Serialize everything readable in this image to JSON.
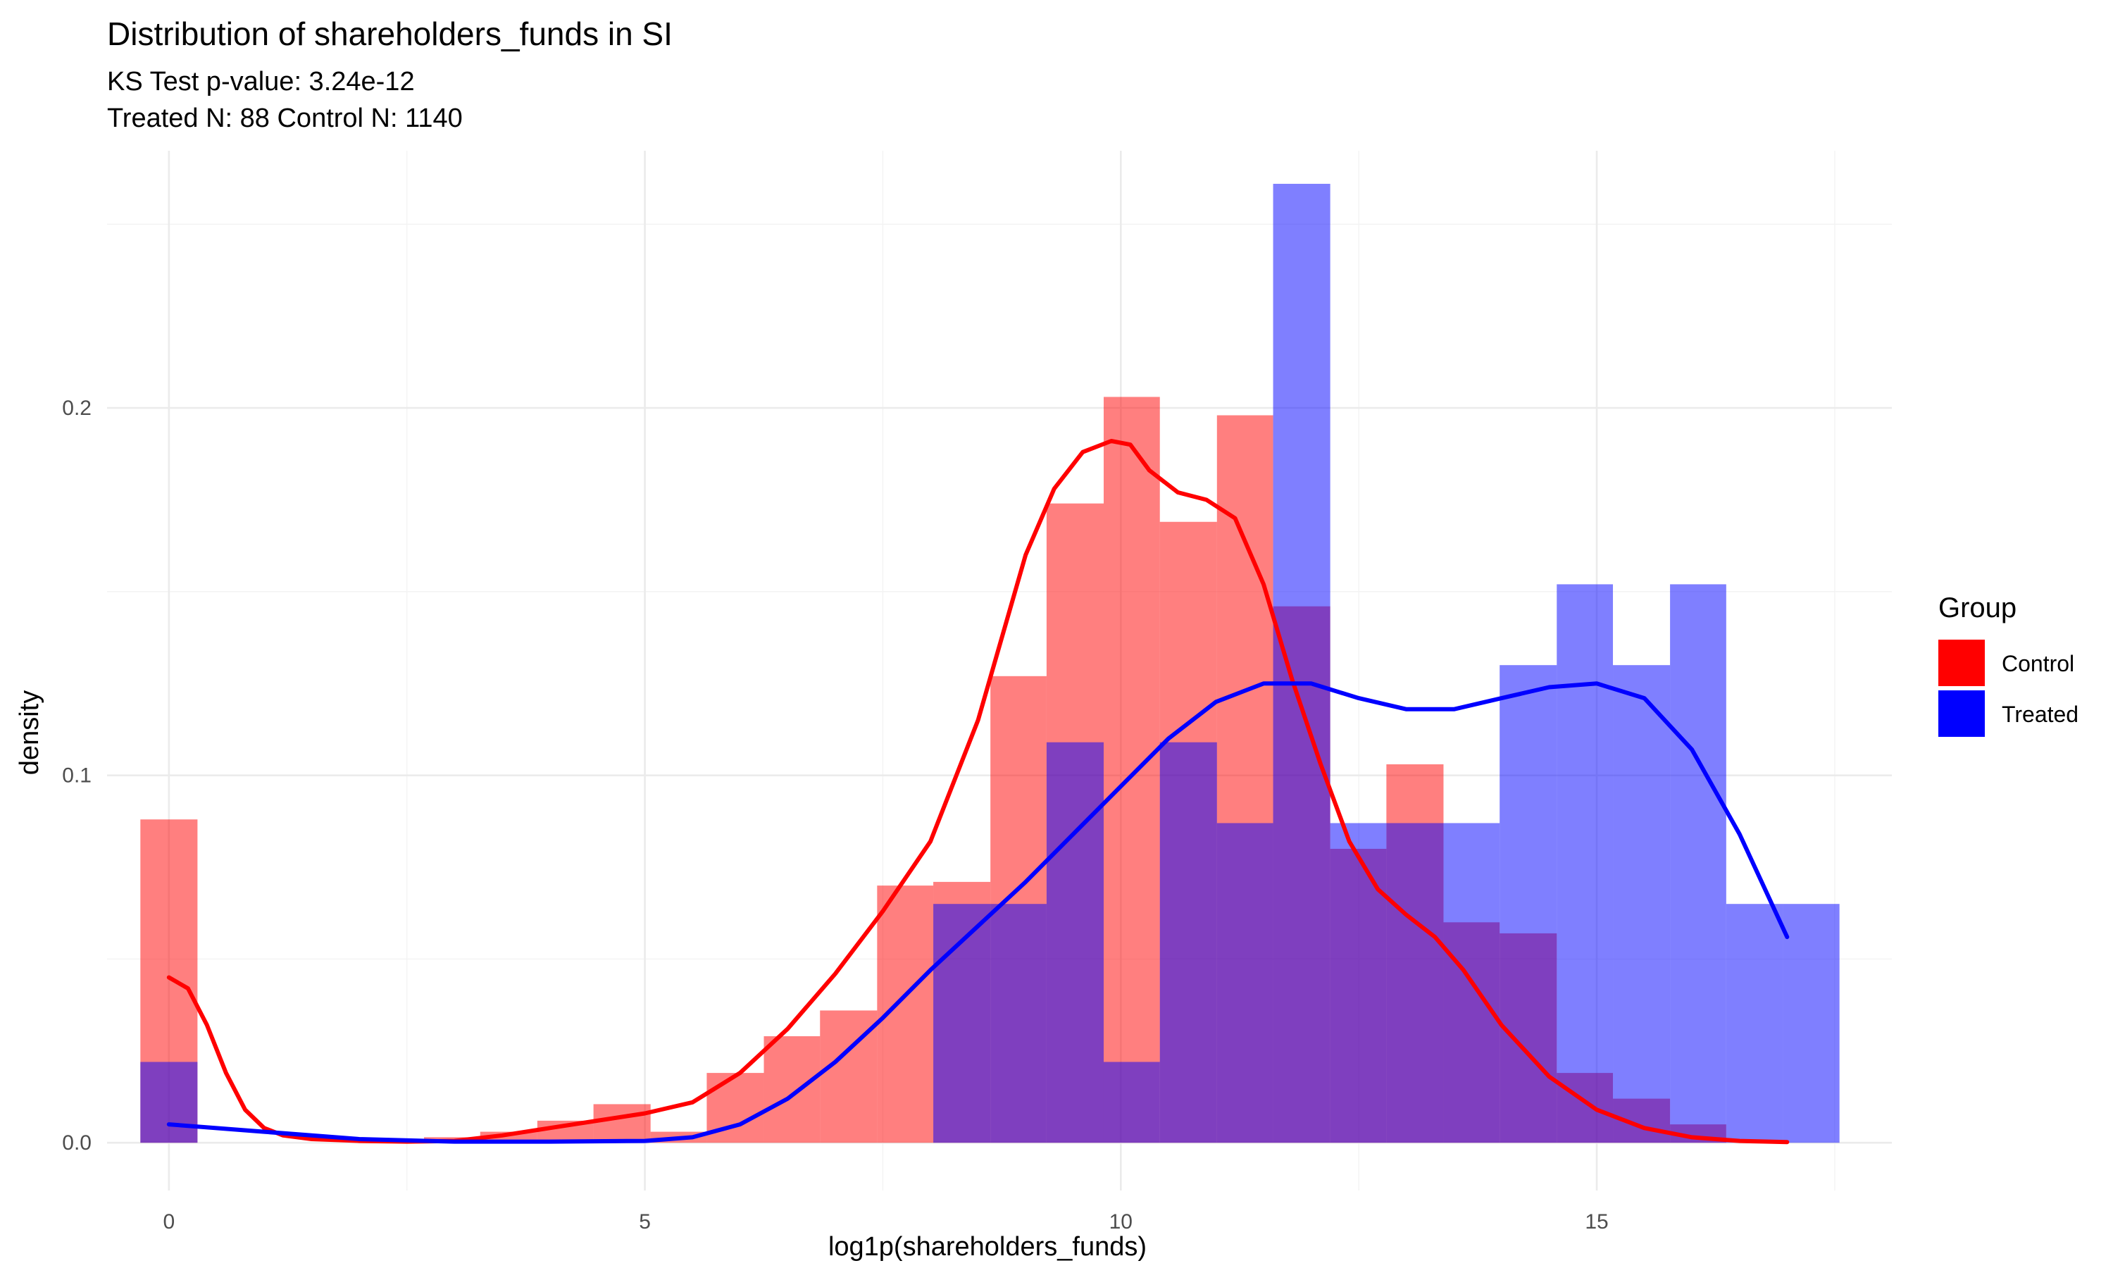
{
  "chart_data": {
    "type": "histogram",
    "title": "Distribution of shareholders_funds in SI",
    "subtitle_lines": [
      "KS Test p-value: 3.24e-12",
      "Treated N: 88 Control N: 1140"
    ],
    "xlabel": "log1p(shareholders_funds)",
    "ylabel": "density",
    "xlim": [
      -0.65,
      18.1
    ],
    "ylim": [
      -0.013,
      0.27
    ],
    "x_ticks": [
      0,
      5,
      10,
      15
    ],
    "x_tick_labels": [
      "0",
      "5",
      "10",
      "15"
    ],
    "y_ticks": [
      0.0,
      0.1,
      0.2
    ],
    "y_tick_labels": [
      "0.0",
      "0.1",
      "0.2"
    ],
    "grid": true,
    "legend": {
      "title": "Group",
      "position": "right"
    },
    "bin_width": 0.595,
    "series": [
      {
        "name": "Control",
        "color": "#FF0000",
        "bins": [
          {
            "x0": -0.3,
            "x1": 0.3,
            "density": 0.088
          },
          {
            "x0": 0.3,
            "x1": 0.89,
            "density": 0.0
          },
          {
            "x0": 0.89,
            "x1": 1.49,
            "density": 0.0
          },
          {
            "x0": 1.49,
            "x1": 2.08,
            "density": 0.0
          },
          {
            "x0": 2.08,
            "x1": 2.68,
            "density": 0.0
          },
          {
            "x0": 2.68,
            "x1": 3.27,
            "density": 0.0015
          },
          {
            "x0": 3.27,
            "x1": 3.87,
            "density": 0.003
          },
          {
            "x0": 3.87,
            "x1": 4.46,
            "density": 0.006
          },
          {
            "x0": 4.46,
            "x1": 5.06,
            "density": 0.0105
          },
          {
            "x0": 5.06,
            "x1": 5.65,
            "density": 0.003
          },
          {
            "x0": 5.65,
            "x1": 6.25,
            "density": 0.019
          },
          {
            "x0": 6.25,
            "x1": 6.84,
            "density": 0.029
          },
          {
            "x0": 6.84,
            "x1": 7.44,
            "density": 0.036
          },
          {
            "x0": 7.44,
            "x1": 8.03,
            "density": 0.07
          },
          {
            "x0": 8.03,
            "x1": 8.63,
            "density": 0.071
          },
          {
            "x0": 8.63,
            "x1": 9.22,
            "density": 0.127
          },
          {
            "x0": 9.22,
            "x1": 9.82,
            "density": 0.174
          },
          {
            "x0": 9.82,
            "x1": 10.41,
            "density": 0.203
          },
          {
            "x0": 10.41,
            "x1": 11.01,
            "density": 0.169
          },
          {
            "x0": 11.01,
            "x1": 11.6,
            "density": 0.198
          },
          {
            "x0": 11.6,
            "x1": 12.2,
            "density": 0.146
          },
          {
            "x0": 12.2,
            "x1": 12.79,
            "density": 0.08
          },
          {
            "x0": 12.79,
            "x1": 13.39,
            "density": 0.103
          },
          {
            "x0": 13.39,
            "x1": 13.98,
            "density": 0.06
          },
          {
            "x0": 13.98,
            "x1": 14.58,
            "density": 0.057
          },
          {
            "x0": 14.58,
            "x1": 15.17,
            "density": 0.019
          },
          {
            "x0": 15.17,
            "x1": 15.77,
            "density": 0.012
          },
          {
            "x0": 15.77,
            "x1": 16.36,
            "density": 0.005
          }
        ],
        "density_curve": {
          "x": [
            0,
            0.2,
            0.4,
            0.6,
            0.8,
            1.0,
            1.2,
            1.5,
            2.0,
            2.5,
            3.0,
            3.5,
            4.0,
            4.5,
            5.0,
            5.5,
            6.0,
            6.5,
            7.0,
            7.5,
            8.0,
            8.5,
            9.0,
            9.3,
            9.6,
            9.9,
            10.1,
            10.3,
            10.6,
            10.9,
            11.2,
            11.5,
            11.8,
            12.1,
            12.4,
            12.7,
            13.0,
            13.3,
            13.6,
            14.0,
            14.5,
            15.0,
            15.5,
            16.0,
            16.5,
            17.0
          ],
          "y": [
            0.045,
            0.042,
            0.032,
            0.019,
            0.009,
            0.004,
            0.002,
            0.001,
            0.0005,
            0.0003,
            0.0005,
            0.002,
            0.004,
            0.006,
            0.008,
            0.011,
            0.019,
            0.031,
            0.046,
            0.063,
            0.082,
            0.115,
            0.16,
            0.178,
            0.188,
            0.191,
            0.19,
            0.183,
            0.177,
            0.175,
            0.17,
            0.152,
            0.126,
            0.103,
            0.082,
            0.069,
            0.062,
            0.056,
            0.047,
            0.032,
            0.018,
            0.009,
            0.004,
            0.0015,
            0.0005,
            0.0002
          ]
        }
      },
      {
        "name": "Treated",
        "color": "#0000FF",
        "bins": [
          {
            "x0": -0.3,
            "x1": 0.3,
            "density": 0.022
          },
          {
            "x0": 7.44,
            "x1": 8.03,
            "density": 0.0
          },
          {
            "x0": 8.03,
            "x1": 8.63,
            "density": 0.065
          },
          {
            "x0": 8.63,
            "x1": 9.22,
            "density": 0.065
          },
          {
            "x0": 9.22,
            "x1": 9.82,
            "density": 0.109
          },
          {
            "x0": 9.82,
            "x1": 10.41,
            "density": 0.022
          },
          {
            "x0": 10.41,
            "x1": 11.01,
            "density": 0.109
          },
          {
            "x0": 11.01,
            "x1": 11.6,
            "density": 0.087
          },
          {
            "x0": 11.6,
            "x1": 12.2,
            "density": 0.261
          },
          {
            "x0": 12.2,
            "x1": 12.79,
            "density": 0.087
          },
          {
            "x0": 12.79,
            "x1": 13.39,
            "density": 0.087
          },
          {
            "x0": 13.39,
            "x1": 13.98,
            "density": 0.087
          },
          {
            "x0": 13.98,
            "x1": 14.58,
            "density": 0.13
          },
          {
            "x0": 14.58,
            "x1": 15.17,
            "density": 0.152
          },
          {
            "x0": 15.17,
            "x1": 15.77,
            "density": 0.13
          },
          {
            "x0": 15.77,
            "x1": 16.36,
            "density": 0.152
          },
          {
            "x0": 16.36,
            "x1": 16.96,
            "density": 0.065
          },
          {
            "x0": 16.96,
            "x1": 17.55,
            "density": 0.065
          }
        ],
        "density_curve": {
          "x": [
            0,
            1,
            2,
            3,
            4,
            5,
            5.5,
            6,
            6.5,
            7,
            7.5,
            8,
            8.5,
            9,
            9.5,
            10,
            10.5,
            11,
            11.5,
            12,
            12.5,
            13,
            13.5,
            14,
            14.5,
            15,
            15.5,
            16,
            16.5,
            17
          ],
          "y": [
            0.005,
            0.003,
            0.001,
            0.0003,
            0.0003,
            0.0005,
            0.0015,
            0.005,
            0.012,
            0.022,
            0.034,
            0.047,
            0.059,
            0.071,
            0.084,
            0.097,
            0.11,
            0.12,
            0.125,
            0.125,
            0.121,
            0.118,
            0.118,
            0.121,
            0.124,
            0.125,
            0.121,
            0.107,
            0.084,
            0.056
          ]
        }
      }
    ]
  }
}
